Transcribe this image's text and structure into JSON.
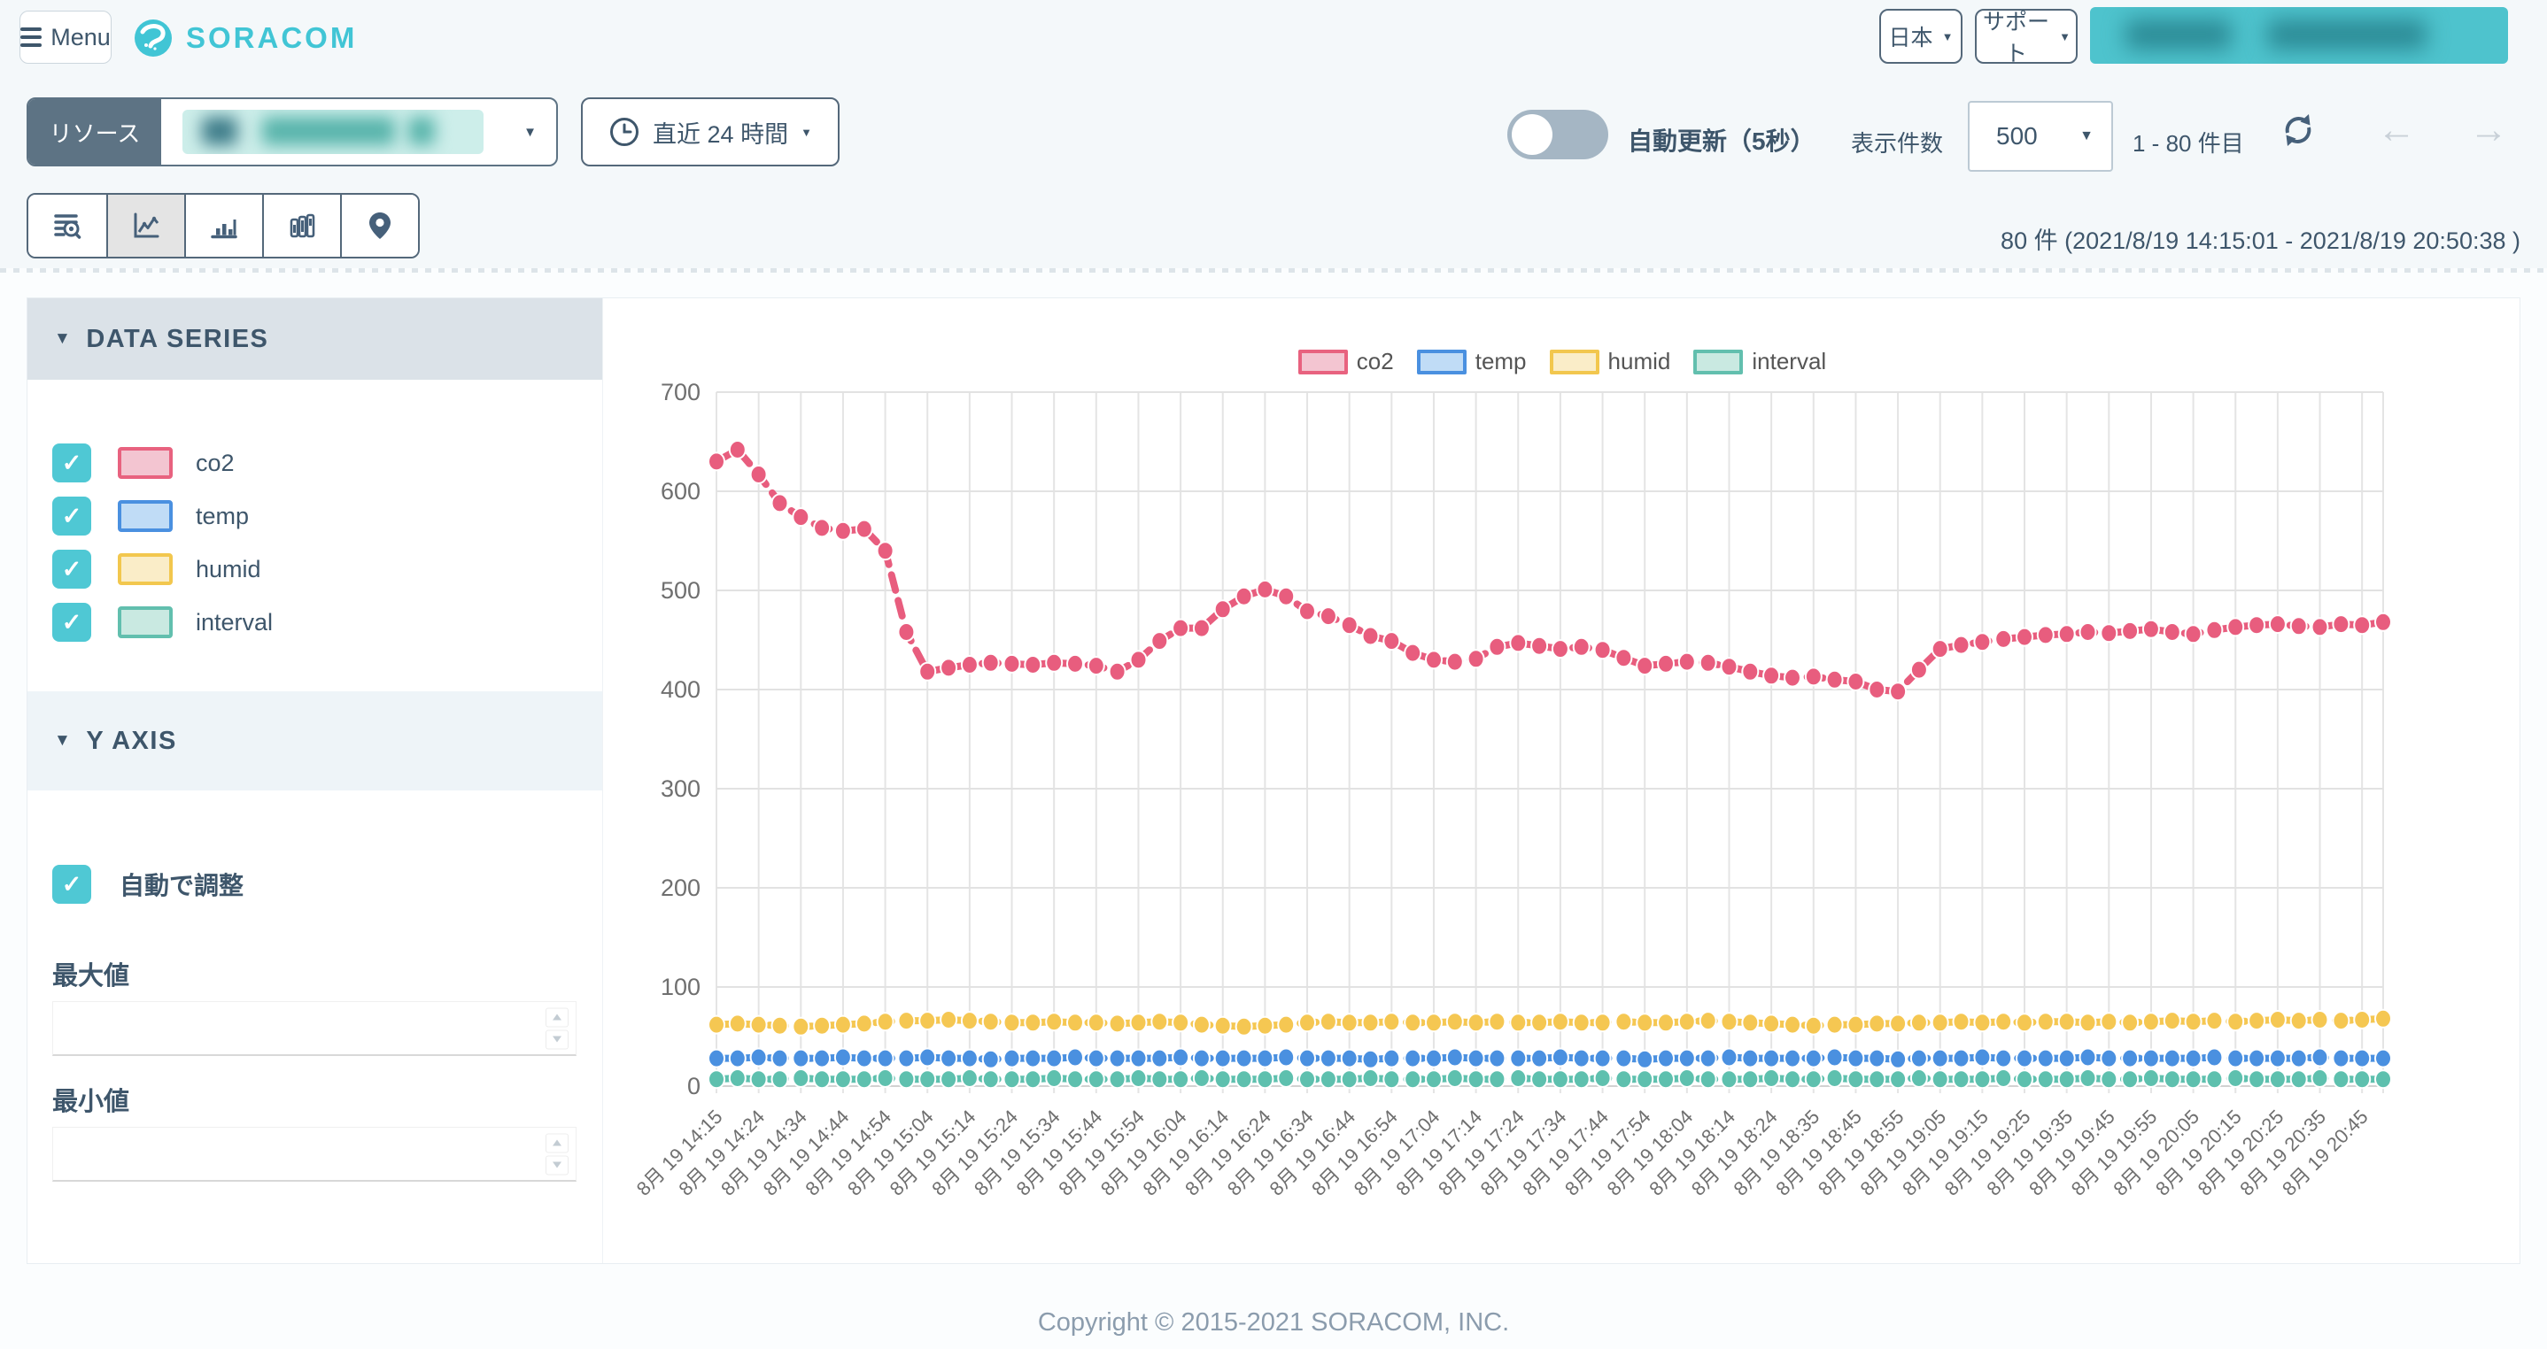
{
  "header": {
    "menu_label": "Menu",
    "brand": "SORACOM",
    "language_label": "日本",
    "support_label": "サポート"
  },
  "toolbar": {
    "resource_label": "リソース",
    "time_range_label": "直近 24 時間",
    "auto_refresh_label": "自動更新（5秒）",
    "auto_refresh_on": false,
    "page_size_label": "表示件数",
    "page_size_value": "500",
    "range_text": "1 - 80 件目"
  },
  "view_tabs": {
    "active_index": 1,
    "names": [
      "data-search",
      "line-chart",
      "bar-chart",
      "stacked-bar-chart",
      "map"
    ]
  },
  "summary": {
    "count_text": "80 件 (2021/8/19 14:15:01  - 2021/8/19 20:50:38 )"
  },
  "sidebar": {
    "data_series_title": "DATA SERIES",
    "y_axis_title": "Y AXIS",
    "auto_adjust_label": "自動で調整",
    "auto_adjust_checked": true,
    "max_label": "最大値",
    "max_value": "",
    "min_label": "最小値",
    "min_value": "",
    "series": [
      {
        "label": "co2",
        "checked": true,
        "stroke": "#e8627f",
        "fill": "#f3c5d1"
      },
      {
        "label": "temp",
        "checked": true,
        "stroke": "#4a90e0",
        "fill": "#c0dcf6"
      },
      {
        "label": "humid",
        "checked": true,
        "stroke": "#f2c74e",
        "fill": "#faedc8"
      },
      {
        "label": "interval",
        "checked": true,
        "stroke": "#62bfae",
        "fill": "#c9e9e1"
      }
    ]
  },
  "chart_data": {
    "type": "line",
    "style": "dashed-line-with-dots",
    "grid": true,
    "legend_position": "top-center",
    "n_points": 80,
    "ylim": [
      0,
      700
    ],
    "yticks": [
      0,
      100,
      200,
      300,
      400,
      500,
      600,
      700
    ],
    "x_tick_every_n_points": 2,
    "x_tick_labels": [
      "8月 19 14:15",
      "8月 19 14:24",
      "8月 19 14:34",
      "8月 19 14:44",
      "8月 19 14:54",
      "8月 19 15:04",
      "8月 19 15:14",
      "8月 19 15:24",
      "8月 19 15:34",
      "8月 19 15:44",
      "8月 19 15:54",
      "8月 19 16:04",
      "8月 19 16:14",
      "8月 19 16:24",
      "8月 19 16:34",
      "8月 19 16:44",
      "8月 19 16:54",
      "8月 19 17:04",
      "8月 19 17:14",
      "8月 19 17:24",
      "8月 19 17:34",
      "8月 19 17:44",
      "8月 19 17:54",
      "8月 19 18:04",
      "8月 19 18:14",
      "8月 19 18:24",
      "8月 19 18:35",
      "8月 19 18:45",
      "8月 19 18:55",
      "8月 19 19:05",
      "8月 19 19:15",
      "8月 19 19:25",
      "8月 19 19:35",
      "8月 19 19:45",
      "8月 19 19:55",
      "8月 19 20:05",
      "8月 19 20:15",
      "8月 19 20:25",
      "8月 19 20:35",
      "8月 19 20:45"
    ],
    "series": [
      {
        "name": "co2",
        "color": "#e85d7e",
        "values": [
          630,
          642,
          617,
          588,
          574,
          563,
          560,
          562,
          540,
          458,
          418,
          422,
          425,
          427,
          426,
          425,
          427,
          426,
          424,
          418,
          430,
          449,
          462,
          462,
          481,
          494,
          501,
          494,
          479,
          474,
          465,
          454,
          449,
          437,
          430,
          428,
          431,
          443,
          447,
          444,
          441,
          443,
          440,
          432,
          424,
          426,
          428,
          427,
          423,
          418,
          414,
          412,
          413,
          410,
          408,
          400,
          398,
          420,
          441,
          445,
          448,
          451,
          453,
          455,
          456,
          458,
          457,
          459,
          461,
          458,
          456,
          460,
          463,
          465,
          466,
          464,
          463,
          466,
          465,
          468
        ]
      },
      {
        "name": "temp",
        "color": "#4a90e0",
        "values": [
          28,
          28,
          29,
          28,
          28,
          28,
          29,
          28,
          28,
          28,
          29,
          28,
          28,
          27,
          28,
          28,
          28,
          29,
          28,
          28,
          28,
          28,
          29,
          28,
          28,
          28,
          28,
          29,
          28,
          28,
          28,
          27,
          28,
          28,
          28,
          29,
          28,
          28,
          28,
          28,
          29,
          28,
          28,
          28,
          27,
          28,
          28,
          28,
          29,
          28,
          28,
          28,
          28,
          29,
          28,
          28,
          27,
          28,
          28,
          28,
          29,
          28,
          28,
          28,
          28,
          29,
          28,
          28,
          28,
          28,
          28,
          29,
          28,
          28,
          28,
          28,
          29,
          28,
          28,
          28
        ]
      },
      {
        "name": "humid",
        "color": "#f5c752",
        "values": [
          62,
          63,
          62,
          61,
          60,
          61,
          62,
          63,
          65,
          66,
          66,
          67,
          66,
          65,
          64,
          64,
          65,
          64,
          64,
          63,
          64,
          65,
          64,
          62,
          61,
          60,
          61,
          62,
          64,
          65,
          64,
          64,
          65,
          64,
          64,
          65,
          64,
          65,
          64,
          64,
          65,
          64,
          64,
          65,
          64,
          64,
          65,
          66,
          65,
          64,
          63,
          62,
          61,
          62,
          62,
          63,
          63,
          64,
          64,
          65,
          64,
          65,
          64,
          65,
          65,
          64,
          65,
          64,
          65,
          66,
          65,
          66,
          65,
          66,
          67,
          66,
          67,
          66,
          67,
          68
        ]
      },
      {
        "name": "interval",
        "color": "#5ec0ae",
        "values": [
          7,
          8,
          7,
          7,
          8,
          7,
          7,
          7,
          8,
          7,
          7,
          7,
          8,
          7,
          7,
          7,
          8,
          7,
          7,
          7,
          8,
          7,
          7,
          8,
          7,
          7,
          7,
          8,
          7,
          7,
          7,
          8,
          7,
          7,
          7,
          8,
          7,
          7,
          8,
          7,
          7,
          7,
          8,
          7,
          7,
          7,
          8,
          7,
          7,
          7,
          8,
          7,
          7,
          8,
          7,
          7,
          7,
          8,
          7,
          7,
          7,
          8,
          7,
          7,
          7,
          8,
          7,
          7,
          8,
          7,
          7,
          7,
          8,
          7,
          7,
          7,
          8,
          7,
          7,
          7
        ]
      }
    ]
  },
  "footer": {
    "copyright": "Copyright © 2015-2021 SORACOM, INC."
  },
  "colors": {
    "brand_teal": "#41c5d5",
    "checkbox_teal": "#4fc8d4",
    "text_dark": "#3e566b",
    "toggle_off": "#a5b6c4"
  }
}
